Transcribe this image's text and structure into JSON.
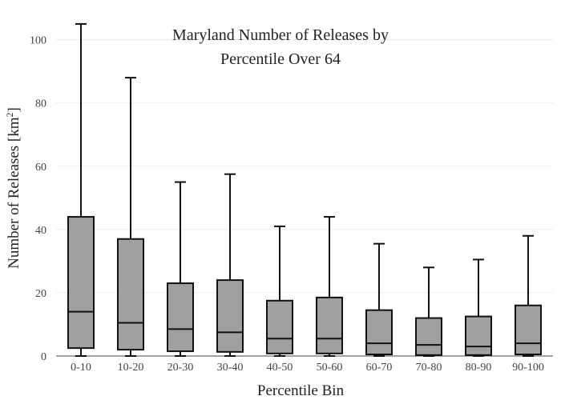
{
  "chart_data": {
    "type": "box",
    "title_lines": [
      "Maryland Number of Releases by",
      "Percentile Over 64"
    ],
    "xlabel": "Percentile Bin",
    "ylabel_main": "Number of Releases  [km",
    "ylabel_sup": "2",
    "ylabel_end": "]",
    "ylim": [
      0,
      107
    ],
    "yticks": [
      0,
      20,
      40,
      60,
      80,
      100
    ],
    "grid": true,
    "box_color": "#a0a0a0",
    "line_color": "#111111",
    "categories": [
      "0-10",
      "10-20",
      "20-30",
      "30-40",
      "40-50",
      "50-60",
      "60-70",
      "70-80",
      "80-90",
      "90-100"
    ],
    "boxes": [
      {
        "min": 0,
        "q1": 2.5,
        "median": 14,
        "q3": 44,
        "max": 105
      },
      {
        "min": 0,
        "q1": 2,
        "median": 10.5,
        "q3": 37,
        "max": 88
      },
      {
        "min": 0,
        "q1": 1.5,
        "median": 8.5,
        "q3": 23,
        "max": 55
      },
      {
        "min": 0,
        "q1": 1.3,
        "median": 7.5,
        "q3": 24,
        "max": 57.5
      },
      {
        "min": 0,
        "q1": 0.8,
        "median": 5.5,
        "q3": 17.5,
        "max": 41
      },
      {
        "min": 0,
        "q1": 0.8,
        "median": 5.5,
        "q3": 18.5,
        "max": 44
      },
      {
        "min": 0,
        "q1": 0.5,
        "median": 4,
        "q3": 14.5,
        "max": 35.5
      },
      {
        "min": 0,
        "q1": 0.3,
        "median": 3.5,
        "q3": 12,
        "max": 28
      },
      {
        "min": 0,
        "q1": 0.3,
        "median": 3,
        "q3": 12.5,
        "max": 30.5
      },
      {
        "min": 0,
        "q1": 0.5,
        "median": 4,
        "q3": 16,
        "max": 38
      }
    ]
  }
}
